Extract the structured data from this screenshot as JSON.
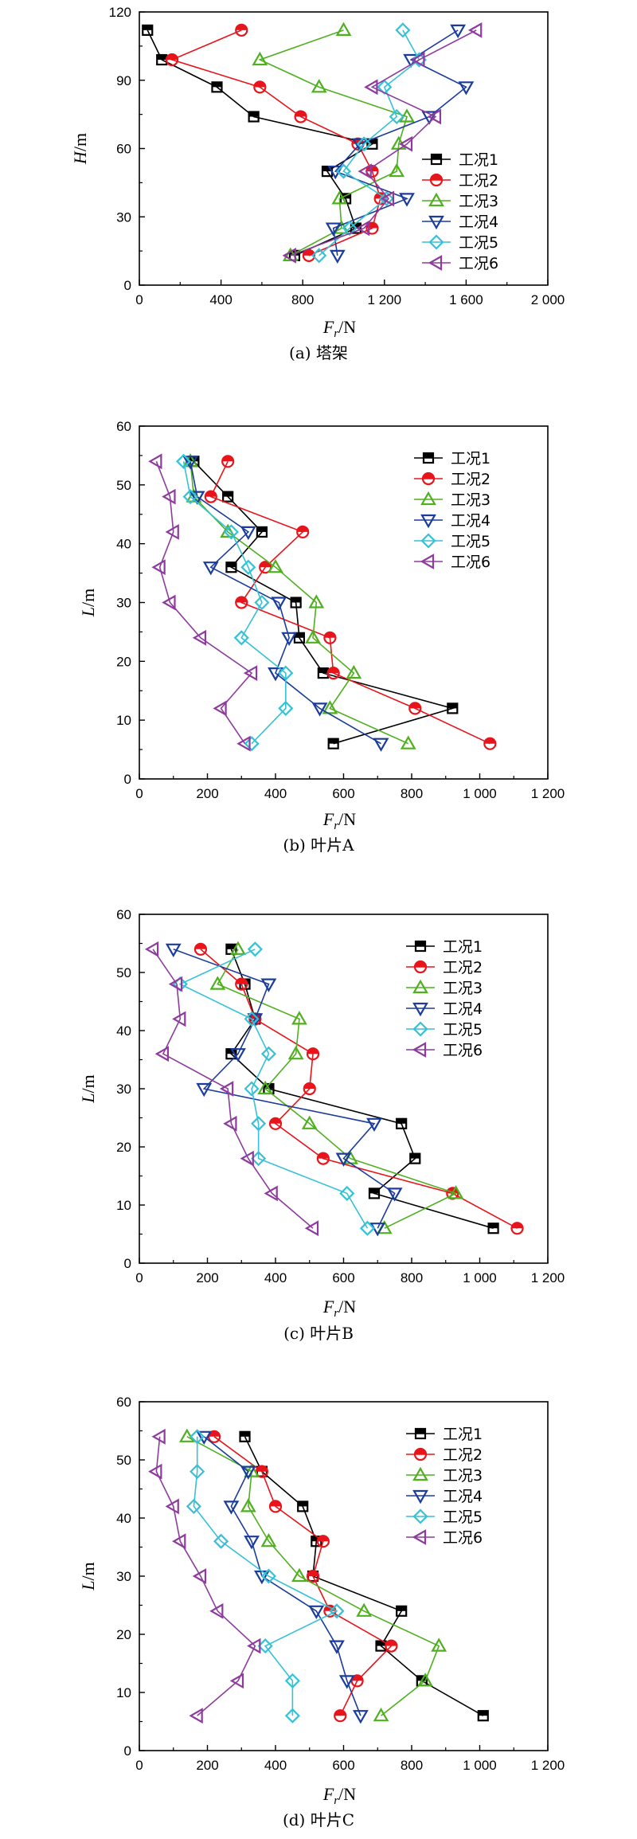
{
  "series_styles": [
    {
      "name": "工况1",
      "color": "#000000",
      "marker": "square"
    },
    {
      "name": "工况2",
      "color": "#e8141b",
      "marker": "circle"
    },
    {
      "name": "工况3",
      "color": "#4fb01f",
      "marker": "triangle-up"
    },
    {
      "name": "工况4",
      "color": "#1b3c9c",
      "marker": "triangle-down"
    },
    {
      "name": "工况5",
      "color": "#35c1d6",
      "marker": "diamond"
    },
    {
      "name": "工况6",
      "color": "#8e3b9e",
      "marker": "triangle-left"
    }
  ],
  "chart_data": [
    {
      "type": "line",
      "caption": "(a) 塔架",
      "xlabel": "Fr/N",
      "ylabel": "H/m",
      "xlim": [
        0,
        2000
      ],
      "ylim": [
        0,
        120
      ],
      "xticks": [
        0,
        400,
        800,
        1200,
        1600,
        2000
      ],
      "xtick_labels": [
        "0",
        "400",
        "800",
        "1 200",
        "1 600",
        "2 000"
      ],
      "yticks": [
        0,
        30,
        60,
        90,
        120
      ],
      "ytick_labels": [
        "0",
        "30",
        "60",
        "90",
        "120"
      ],
      "legend_position": "bottom-right",
      "series": [
        {
          "name": "工况1",
          "points": [
            [
              40,
              112
            ],
            [
              110,
              99
            ],
            [
              380,
              87
            ],
            [
              560,
              74
            ],
            [
              1140,
              62
            ],
            [
              920,
              50
            ],
            [
              1010,
              38
            ],
            [
              1060,
              25
            ],
            [
              760,
              13
            ]
          ]
        },
        {
          "name": "工况2",
          "points": [
            [
              500,
              112
            ],
            [
              160,
              99
            ],
            [
              590,
              87
            ],
            [
              790,
              74
            ],
            [
              1070,
              62
            ],
            [
              1140,
              50
            ],
            [
              1180,
              38
            ],
            [
              1140,
              25
            ],
            [
              830,
              13
            ]
          ]
        },
        {
          "name": "工况3",
          "points": [
            [
              1000,
              112
            ],
            [
              590,
              99
            ],
            [
              880,
              87
            ],
            [
              1310,
              74
            ],
            [
              1270,
              62
            ],
            [
              1260,
              50
            ],
            [
              980,
              38
            ],
            [
              990,
              25
            ],
            [
              740,
              13
            ]
          ]
        },
        {
          "name": "工况4",
          "points": [
            [
              1560,
              112
            ],
            [
              1330,
              99
            ],
            [
              1600,
              87
            ],
            [
              1420,
              74
            ],
            [
              1080,
              62
            ],
            [
              960,
              50
            ],
            [
              1310,
              38
            ],
            [
              950,
              25
            ],
            [
              970,
              13
            ]
          ]
        },
        {
          "name": "工况5",
          "points": [
            [
              1290,
              112
            ],
            [
              1370,
              99
            ],
            [
              1200,
              87
            ],
            [
              1260,
              74
            ],
            [
              1100,
              62
            ],
            [
              1000,
              50
            ],
            [
              1210,
              38
            ],
            [
              1030,
              25
            ],
            [
              880,
              13
            ]
          ]
        },
        {
          "name": "工况6",
          "points": [
            [
              1650,
              112
            ],
            [
              1370,
              99
            ],
            [
              1140,
              87
            ],
            [
              1450,
              74
            ],
            [
              1310,
              62
            ],
            [
              1110,
              50
            ],
            [
              1220,
              38
            ],
            [
              1100,
              25
            ],
            [
              740,
              13
            ]
          ]
        }
      ]
    },
    {
      "type": "line",
      "caption": "(b) 叶片A",
      "xlabel": "Fr/N",
      "ylabel": "L/m",
      "xlim": [
        0,
        1200
      ],
      "ylim": [
        0,
        60
      ],
      "xticks": [
        0,
        200,
        400,
        600,
        800,
        1000,
        1200
      ],
      "xtick_labels": [
        "0",
        "200",
        "400",
        "600",
        "800",
        "1 000",
        "1 200"
      ],
      "yticks": [
        0,
        10,
        20,
        30,
        40,
        50,
        60
      ],
      "ytick_labels": [
        "0",
        "10",
        "20",
        "30",
        "40",
        "50",
        "60"
      ],
      "legend_position": "top-right",
      "series": [
        {
          "name": "工况1",
          "points": [
            [
              160,
              54
            ],
            [
              260,
              48
            ],
            [
              360,
              42
            ],
            [
              270,
              36
            ],
            [
              460,
              30
            ],
            [
              470,
              24
            ],
            [
              540,
              18
            ],
            [
              920,
              12
            ],
            [
              570,
              6
            ]
          ]
        },
        {
          "name": "工况2",
          "points": [
            [
              260,
              54
            ],
            [
              210,
              48
            ],
            [
              480,
              42
            ],
            [
              370,
              36
            ],
            [
              300,
              30
            ],
            [
              560,
              24
            ],
            [
              570,
              18
            ],
            [
              810,
              12
            ],
            [
              1030,
              6
            ]
          ]
        },
        {
          "name": "工况3",
          "points": [
            [
              150,
              54
            ],
            [
              160,
              48
            ],
            [
              260,
              42
            ],
            [
              400,
              36
            ],
            [
              520,
              30
            ],
            [
              510,
              24
            ],
            [
              630,
              18
            ],
            [
              560,
              12
            ],
            [
              790,
              6
            ]
          ]
        },
        {
          "name": "工况4",
          "points": [
            [
              150,
              54
            ],
            [
              170,
              48
            ],
            [
              320,
              42
            ],
            [
              210,
              36
            ],
            [
              410,
              30
            ],
            [
              440,
              24
            ],
            [
              400,
              18
            ],
            [
              530,
              12
            ],
            [
              710,
              6
            ]
          ]
        },
        {
          "name": "工况5",
          "points": [
            [
              130,
              54
            ],
            [
              150,
              48
            ],
            [
              270,
              42
            ],
            [
              320,
              36
            ],
            [
              360,
              30
            ],
            [
              300,
              24
            ],
            [
              430,
              18
            ],
            [
              430,
              12
            ],
            [
              330,
              6
            ]
          ]
        },
        {
          "name": "工况6",
          "points": [
            [
              50,
              54
            ],
            [
              90,
              48
            ],
            [
              100,
              42
            ],
            [
              60,
              36
            ],
            [
              90,
              30
            ],
            [
              180,
              24
            ],
            [
              330,
              18
            ],
            [
              240,
              12
            ],
            [
              310,
              6
            ]
          ]
        }
      ]
    },
    {
      "type": "line",
      "caption": "(c) 叶片B",
      "xlabel": "Fr/N",
      "ylabel": "L/m",
      "xlim": [
        0,
        1200
      ],
      "ylim": [
        0,
        60
      ],
      "xticks": [
        0,
        200,
        400,
        600,
        800,
        1000,
        1200
      ],
      "xtick_labels": [
        "0",
        "200",
        "400",
        "600",
        "800",
        "1 000",
        "1 200"
      ],
      "yticks": [
        0,
        10,
        20,
        30,
        40,
        50,
        60
      ],
      "ytick_labels": [
        "0",
        "10",
        "20",
        "30",
        "40",
        "50",
        "60"
      ],
      "legend_position": "top-right",
      "series": [
        {
          "name": "工况1",
          "points": [
            [
              270,
              54
            ],
            [
              310,
              48
            ],
            [
              340,
              42
            ],
            [
              270,
              36
            ],
            [
              380,
              30
            ],
            [
              770,
              24
            ],
            [
              810,
              18
            ],
            [
              690,
              12
            ],
            [
              1040,
              6
            ]
          ]
        },
        {
          "name": "工况2",
          "points": [
            [
              180,
              54
            ],
            [
              300,
              48
            ],
            [
              340,
              42
            ],
            [
              510,
              36
            ],
            [
              500,
              30
            ],
            [
              400,
              24
            ],
            [
              540,
              18
            ],
            [
              920,
              12
            ],
            [
              1110,
              6
            ]
          ]
        },
        {
          "name": "工况3",
          "points": [
            [
              290,
              54
            ],
            [
              230,
              48
            ],
            [
              470,
              42
            ],
            [
              460,
              36
            ],
            [
              370,
              30
            ],
            [
              500,
              24
            ],
            [
              620,
              18
            ],
            [
              930,
              12
            ],
            [
              720,
              6
            ]
          ]
        },
        {
          "name": "工况4",
          "points": [
            [
              100,
              54
            ],
            [
              380,
              48
            ],
            [
              340,
              42
            ],
            [
              290,
              36
            ],
            [
              190,
              30
            ],
            [
              690,
              24
            ],
            [
              600,
              18
            ],
            [
              750,
              12
            ],
            [
              700,
              6
            ]
          ]
        },
        {
          "name": "工况5",
          "points": [
            [
              340,
              54
            ],
            [
              120,
              48
            ],
            [
              330,
              42
            ],
            [
              380,
              36
            ],
            [
              330,
              30
            ],
            [
              350,
              24
            ],
            [
              350,
              18
            ],
            [
              610,
              12
            ],
            [
              670,
              6
            ]
          ]
        },
        {
          "name": "工况6",
          "points": [
            [
              40,
              54
            ],
            [
              110,
              48
            ],
            [
              120,
              42
            ],
            [
              70,
              36
            ],
            [
              260,
              30
            ],
            [
              270,
              24
            ],
            [
              320,
              18
            ],
            [
              390,
              12
            ],
            [
              510,
              6
            ]
          ]
        }
      ]
    },
    {
      "type": "line",
      "caption": "(d) 叶片C",
      "xlabel": "Fr/N",
      "ylabel": "L/m",
      "xlim": [
        0,
        1200
      ],
      "ylim": [
        0,
        60
      ],
      "xticks": [
        0,
        200,
        400,
        600,
        800,
        1000,
        1200
      ],
      "xtick_labels": [
        "0",
        "200",
        "400",
        "600",
        "800",
        "1 000",
        "1 200"
      ],
      "yticks": [
        0,
        10,
        20,
        30,
        40,
        50,
        60
      ],
      "ytick_labels": [
        "0",
        "10",
        "20",
        "30",
        "40",
        "50",
        "60"
      ],
      "legend_position": "top-right",
      "series": [
        {
          "name": "工况1",
          "points": [
            [
              310,
              54
            ],
            [
              360,
              48
            ],
            [
              480,
              42
            ],
            [
              520,
              36
            ],
            [
              510,
              30
            ],
            [
              770,
              24
            ],
            [
              710,
              18
            ],
            [
              830,
              12
            ],
            [
              1010,
              6
            ]
          ]
        },
        {
          "name": "工况2",
          "points": [
            [
              220,
              54
            ],
            [
              360,
              48
            ],
            [
              400,
              42
            ],
            [
              540,
              36
            ],
            [
              510,
              30
            ],
            [
              560,
              24
            ],
            [
              740,
              18
            ],
            [
              640,
              12
            ],
            [
              590,
              6
            ]
          ]
        },
        {
          "name": "工况3",
          "points": [
            [
              140,
              54
            ],
            [
              330,
              48
            ],
            [
              320,
              42
            ],
            [
              380,
              36
            ],
            [
              470,
              30
            ],
            [
              660,
              24
            ],
            [
              880,
              18
            ],
            [
              840,
              12
            ],
            [
              710,
              6
            ]
          ]
        },
        {
          "name": "工况4",
          "points": [
            [
              190,
              54
            ],
            [
              320,
              48
            ],
            [
              270,
              42
            ],
            [
              330,
              36
            ],
            [
              360,
              30
            ],
            [
              520,
              24
            ],
            [
              580,
              18
            ],
            [
              610,
              12
            ],
            [
              650,
              6
            ]
          ]
        },
        {
          "name": "工况5",
          "points": [
            [
              170,
              54
            ],
            [
              170,
              48
            ],
            [
              160,
              42
            ],
            [
              240,
              36
            ],
            [
              380,
              30
            ],
            [
              580,
              24
            ],
            [
              370,
              18
            ],
            [
              450,
              12
            ],
            [
              450,
              6
            ]
          ]
        },
        {
          "name": "工况6",
          "points": [
            [
              60,
              54
            ],
            [
              50,
              48
            ],
            [
              100,
              42
            ],
            [
              120,
              36
            ],
            [
              180,
              30
            ],
            [
              230,
              24
            ],
            [
              340,
              18
            ],
            [
              290,
              12
            ],
            [
              170,
              6
            ]
          ]
        }
      ]
    }
  ]
}
